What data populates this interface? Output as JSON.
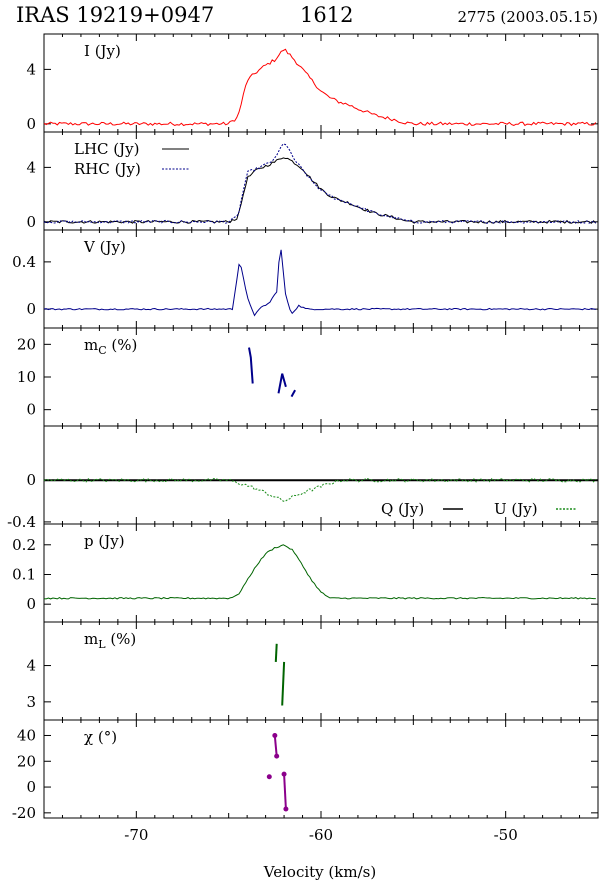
{
  "header": {
    "source": "IRAS 19219+0947",
    "line": "1612",
    "obs": "2775 (2003.05.15)"
  },
  "chart_data": {
    "type": "line",
    "xlabel": "Velocity (km/s)",
    "xlim": [
      -75,
      -45
    ],
    "xticks": [
      -70,
      -60,
      -50
    ],
    "panels": [
      {
        "id": "I",
        "label": "I (Jy)",
        "ylim": [
          -0.6,
          6.6
        ],
        "yticks": [
          0,
          4
        ],
        "series": [
          {
            "color": "#ff0000",
            "style": "solid",
            "x": [
              -75,
              -65,
              -64.5,
              -64,
              -63.5,
              -63,
              -62.5,
              -62,
              -61.5,
              -61,
              -60.5,
              -60,
              -59.5,
              -59,
              -58.5,
              -58,
              -57,
              -56,
              -55.5,
              -55,
              -45
            ],
            "y": [
              0,
              0,
              0.5,
              3.2,
              3.8,
              4.3,
              4.7,
              5.5,
              4.8,
              4.0,
              3.2,
              2.4,
              1.9,
              1.6,
              1.4,
              1.1,
              0.6,
              0.3,
              0.1,
              0,
              0
            ]
          }
        ]
      },
      {
        "id": "LHC_RHC",
        "ylim": [
          -0.6,
          6.6
        ],
        "yticks": [
          0,
          4
        ],
        "legend": [
          {
            "label": "LHC (Jy)",
            "color": "#000000",
            "style": "solid"
          },
          {
            "label": "RHC (Jy)",
            "color": "#00008b",
            "style": "dotted"
          }
        ],
        "series": [
          {
            "color": "#000000",
            "style": "solid",
            "x": [
              -75,
              -65,
              -64.5,
              -64,
              -63.5,
              -63,
              -62.5,
              -62,
              -61.5,
              -61,
              -60.5,
              -60,
              -59.5,
              -59,
              -58.5,
              -58,
              -57,
              -56,
              -55.5,
              -55,
              -45
            ],
            "y": [
              0,
              0,
              0.3,
              3.2,
              3.8,
              4.1,
              4.4,
              4.8,
              4.4,
              3.9,
              3.1,
              2.4,
              1.9,
              1.6,
              1.4,
              1.1,
              0.6,
              0.3,
              0.1,
              0,
              0
            ]
          },
          {
            "color": "#00008b",
            "style": "dotted",
            "x": [
              -75,
              -65,
              -64.5,
              -64,
              -63.5,
              -63,
              -62.5,
              -62,
              -61.5,
              -61,
              -60.5,
              -60,
              -59.5,
              -59,
              -58.5,
              -58,
              -57,
              -56,
              -55.5,
              -55,
              -45
            ],
            "y": [
              0,
              0,
              0.4,
              3.6,
              3.9,
              4.2,
              4.6,
              5.9,
              4.7,
              3.8,
              3.0,
              2.3,
              1.9,
              1.6,
              1.4,
              1.1,
              0.6,
              0.3,
              0.1,
              0,
              0
            ]
          }
        ]
      },
      {
        "id": "V",
        "label": "V (Jy)",
        "ylim": [
          -0.16,
          0.67
        ],
        "yticks": [
          0,
          0.4
        ],
        "series": [
          {
            "color": "#00008b",
            "style": "solid",
            "x": [
              -75,
              -64.8,
              -64.4,
              -64.0,
              -63.6,
              -63.2,
              -62.8,
              -62.4,
              -62.2,
              -61.9,
              -61.6,
              -61.2,
              -60.8,
              -45
            ],
            "y": [
              0,
              0.0,
              0.42,
              0.1,
              -0.05,
              0.02,
              0.05,
              0.15,
              0.56,
              0.1,
              -0.04,
              0.03,
              0.0,
              0
            ]
          }
        ]
      },
      {
        "id": "mC",
        "label": "m",
        "label_sub": "C",
        "label_rest": " (%)",
        "ylim": [
          -5,
          25
        ],
        "yticks": [
          0,
          10,
          20
        ],
        "series": [
          {
            "color": "#00008b",
            "style": "solid",
            "x": [
              -63.9,
              -63.8,
              -63.7
            ],
            "y": [
              19,
              16,
              8
            ]
          },
          {
            "color": "#00008b",
            "style": "solid",
            "x": [
              -62.3,
              -62.1,
              -61.9
            ],
            "y": [
              5,
              11,
              7
            ]
          },
          {
            "color": "#00008b",
            "style": "solid",
            "x": [
              -61.6,
              -61.4
            ],
            "y": [
              4,
              6
            ]
          }
        ]
      },
      {
        "id": "QU",
        "ylim": [
          -0.42,
          0.52
        ],
        "yticks": [
          0,
          -0.4
        ],
        "legend": [
          {
            "label": "Q (Jy)",
            "color": "#000000",
            "style": "solid"
          },
          {
            "label": "U (Jy)",
            "color": "#1a8c1a",
            "style": "dotted"
          }
        ],
        "series": [
          {
            "color": "#000000",
            "style": "solid",
            "x": [
              -75,
              -45
            ],
            "y": [
              0,
              0
            ]
          },
          {
            "color": "#1a8c1a",
            "style": "dotted",
            "x": [
              -75,
              -65,
              -64,
              -63,
              -62,
              -61,
              -60,
              -59,
              -45
            ],
            "y": [
              0,
              0,
              -0.05,
              -0.12,
              -0.2,
              -0.12,
              -0.06,
              0,
              0
            ]
          }
        ]
      },
      {
        "id": "p",
        "label": "p (Jy)",
        "ylim": [
          -0.06,
          0.27
        ],
        "yticks": [
          0,
          0.1,
          0.2
        ],
        "series": [
          {
            "color": "#006400",
            "style": "solid",
            "x": [
              -75,
              -65,
              -64.5,
              -64,
              -63.5,
              -63,
              -62.5,
              -62,
              -61.5,
              -61,
              -60.5,
              -60,
              -59.5,
              -45
            ],
            "y": [
              0.02,
              0.02,
              0.03,
              0.08,
              0.13,
              0.17,
              0.19,
              0.2,
              0.18,
              0.13,
              0.08,
              0.04,
              0.02,
              0.02
            ]
          }
        ]
      },
      {
        "id": "mL",
        "label": "m",
        "label_sub": "L",
        "label_rest": " (%)",
        "ylim": [
          2.5,
          5.2
        ],
        "yticks": [
          3,
          4
        ],
        "series": [
          {
            "color": "#006400",
            "style": "solid",
            "x": [
              -62.45,
              -62.4
            ],
            "y": [
              4.1,
              4.6
            ]
          },
          {
            "color": "#006400",
            "style": "solid",
            "x": [
              -62.1,
              -62.0
            ],
            "y": [
              2.9,
              4.1
            ]
          }
        ]
      },
      {
        "id": "chi",
        "label": "χ (°)",
        "ylim": [
          -24,
          52
        ],
        "yticks": [
          -20,
          0,
          20,
          40
        ],
        "series": [
          {
            "color": "#8b008b",
            "style": "solid",
            "markers": true,
            "x": [
              -62.5,
              -62.4
            ],
            "y": [
              40,
              24
            ]
          },
          {
            "color": "#8b008b",
            "style": "solid",
            "markers": true,
            "x": [
              -62.0,
              -61.9
            ],
            "y": [
              10,
              -17
            ]
          },
          {
            "color": "#8b008b",
            "style": "solid",
            "markers": true,
            "x": [
              -62.8
            ],
            "y": [
              8
            ]
          }
        ]
      }
    ]
  }
}
